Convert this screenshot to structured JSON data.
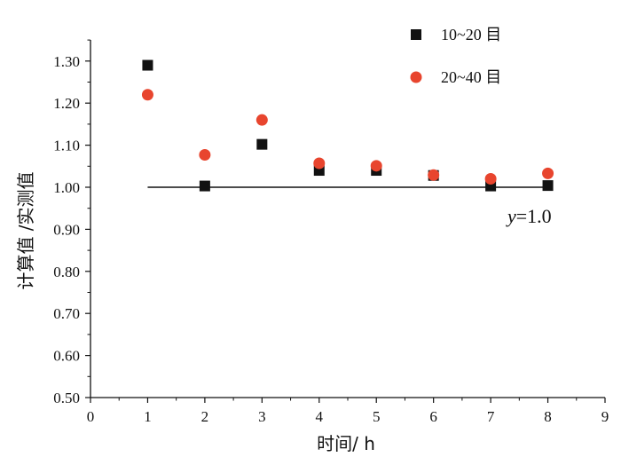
{
  "chart_data": {
    "type": "scatter",
    "xlabel": "时间/ h",
    "ylabel": "计算值 /实测值",
    "xlim": [
      0,
      9
    ],
    "ylim": [
      0.5,
      1.35
    ],
    "x_ticks": [
      "0",
      "1",
      "2",
      "3",
      "4",
      "5",
      "6",
      "7",
      "8",
      "9"
    ],
    "y_ticks": [
      "0.50",
      "0.60",
      "0.70",
      "0.80",
      "0.90",
      "1.00",
      "1.10",
      "1.20",
      "1.30"
    ],
    "grid": false,
    "legend_position": "top-right",
    "series": [
      {
        "name": "10~20 目",
        "marker": "square",
        "color": "#111111",
        "x": [
          1,
          2,
          3,
          4,
          5,
          6,
          7,
          8
        ],
        "y": [
          1.29,
          1.003,
          1.102,
          1.04,
          1.04,
          1.028,
          1.003,
          1.004
        ]
      },
      {
        "name": "20~40 目",
        "marker": "circle",
        "color": "#e8452e",
        "x": [
          1,
          2,
          3,
          4,
          5,
          6,
          7,
          8
        ],
        "y": [
          1.22,
          1.077,
          1.16,
          1.057,
          1.051,
          1.029,
          1.02,
          1.033
        ]
      }
    ],
    "reference_line": {
      "label_var": "y",
      "label_value": "=1.0",
      "y": 1.0,
      "x_range": [
        1,
        8
      ]
    }
  }
}
